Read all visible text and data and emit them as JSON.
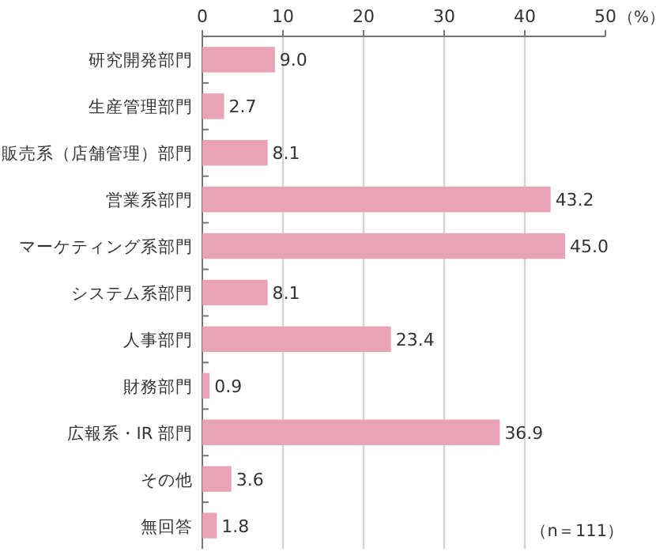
{
  "chart_data": {
    "type": "bar",
    "orientation": "horizontal",
    "categories": [
      "研究開発部門",
      "生産管理部門",
      "販売系（店舗管理）部門",
      "営業系部門",
      "マーケティング系部門",
      "システム系部門",
      "人事部門",
      "財務部門",
      "広報系・IR 部門",
      "その他",
      "無回答"
    ],
    "values": [
      9.0,
      2.7,
      8.1,
      43.2,
      45.0,
      8.1,
      23.4,
      0.9,
      36.9,
      3.6,
      1.8
    ],
    "color": "#eaa3b6",
    "xlim": [
      0,
      50
    ],
    "xticks": [
      0,
      10,
      20,
      30,
      40,
      50
    ],
    "xlabel": "（%）",
    "grid": "x",
    "value_labels": [
      "9.0",
      "2.7",
      "8.1",
      "43.2",
      "45.0",
      "8.1",
      "23.4",
      "0.9",
      "36.9",
      "3.6",
      "1.8"
    ],
    "annotations": [
      "（n＝111）"
    ]
  }
}
